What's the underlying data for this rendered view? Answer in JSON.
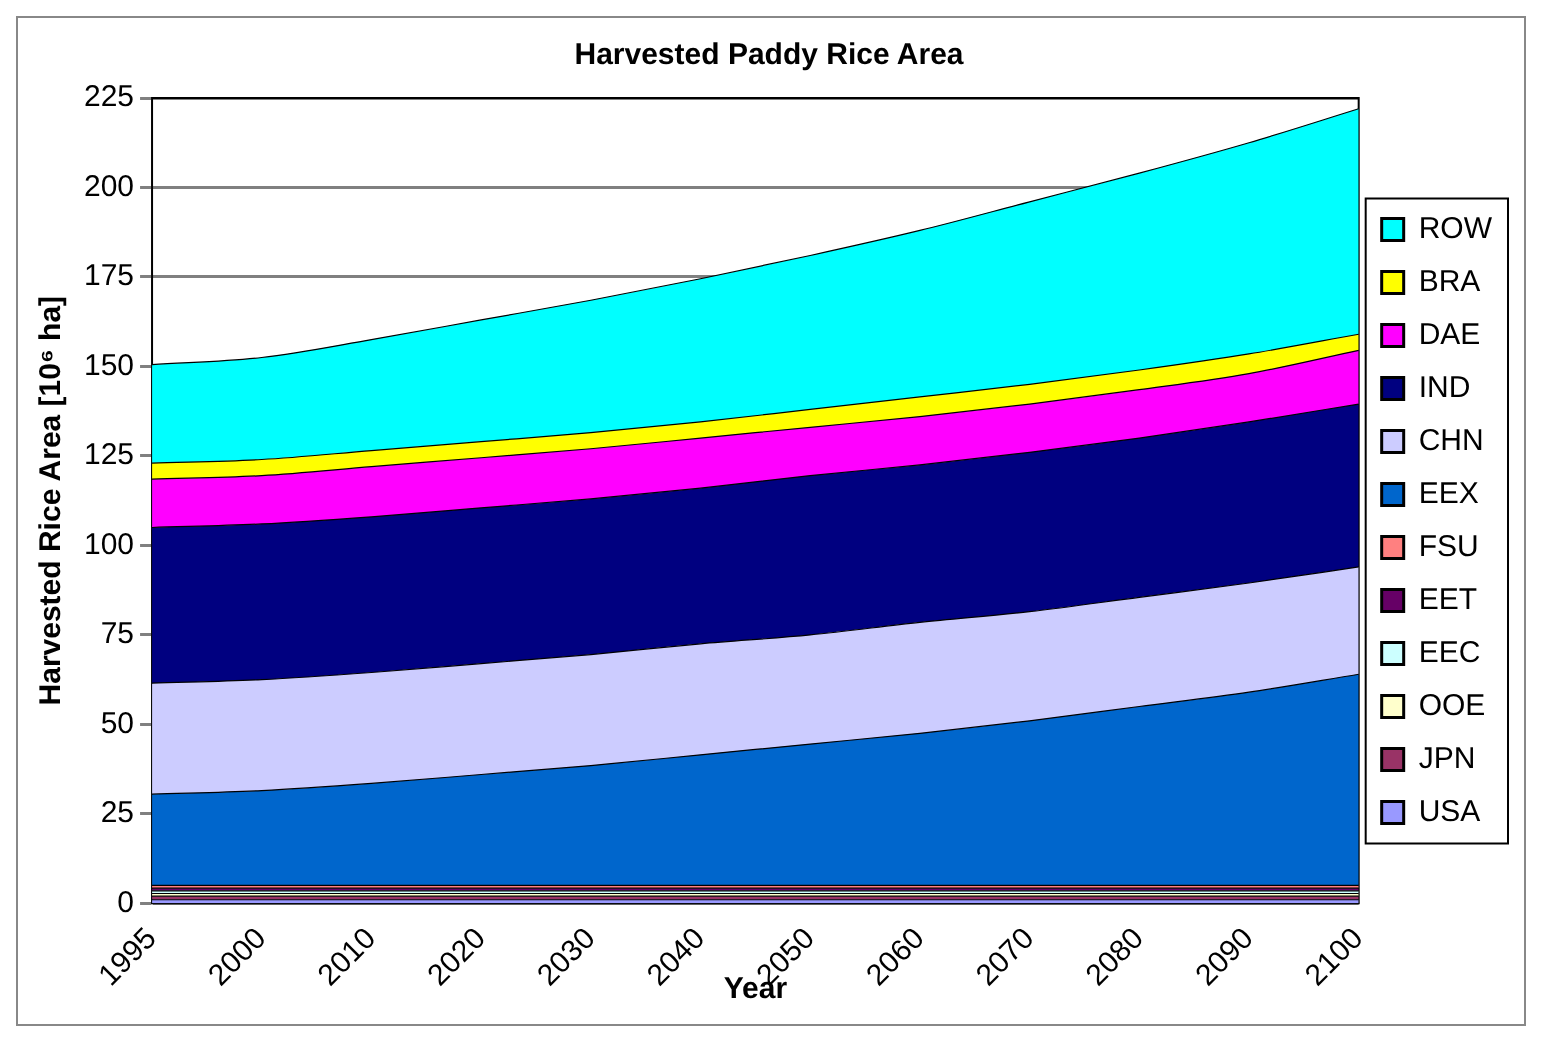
{
  "chart_data": {
    "type": "area",
    "title": "Harvested Paddy Rice Area",
    "xlabel": "Year",
    "ylabel": "Harvested Rice Area [10⁶ ha]",
    "categories": [
      "1995",
      "2000",
      "2010",
      "2020",
      "2030",
      "2040",
      "2050",
      "2060",
      "2070",
      "2080",
      "2090",
      "2100"
    ],
    "stacked": true,
    "ylim": [
      0,
      225
    ],
    "yticks": [
      0,
      25,
      50,
      75,
      100,
      125,
      150,
      175,
      200,
      225
    ],
    "grid": "y",
    "legend": "right",
    "series": [
      {
        "name": "USA",
        "color": "#9999ff",
        "values": [
          1,
          1,
          1,
          1,
          1,
          1,
          1,
          1,
          1,
          1,
          1,
          1
        ]
      },
      {
        "name": "JPN",
        "color": "#993366",
        "values": [
          1,
          1,
          1,
          1,
          1,
          1,
          1,
          1,
          1,
          1,
          1,
          1
        ]
      },
      {
        "name": "OOE",
        "color": "#ffffcc",
        "values": [
          0.75,
          0.75,
          0.75,
          0.75,
          0.75,
          0.75,
          0.75,
          0.75,
          0.75,
          0.75,
          0.75,
          0.75
        ]
      },
      {
        "name": "EEC",
        "color": "#ccffff",
        "values": [
          0.75,
          0.75,
          0.75,
          0.75,
          0.75,
          0.75,
          0.75,
          0.75,
          0.75,
          0.75,
          0.75,
          0.75
        ]
      },
      {
        "name": "EET",
        "color": "#660066",
        "values": [
          0.75,
          0.75,
          0.75,
          0.75,
          0.75,
          0.75,
          0.75,
          0.75,
          0.75,
          0.75,
          0.75,
          0.75
        ]
      },
      {
        "name": "FSU",
        "color": "#ff8080",
        "values": [
          0.75,
          0.75,
          0.75,
          0.75,
          0.75,
          0.75,
          0.75,
          0.75,
          0.75,
          0.75,
          0.75,
          0.75
        ]
      },
      {
        "name": "EEX",
        "color": "#0066cc",
        "values": [
          25.5,
          26.5,
          28.5,
          31,
          33.5,
          36.5,
          39.5,
          42.5,
          46,
          50,
          54,
          59
        ]
      },
      {
        "name": "CHN",
        "color": "#ccccff",
        "values": [
          31,
          31,
          31,
          31,
          31,
          31,
          30.5,
          31,
          30.5,
          30.5,
          30.5,
          30
        ]
      },
      {
        "name": "IND",
        "color": "#000080",
        "values": [
          43.5,
          43.5,
          43.5,
          43.5,
          43.5,
          43.5,
          44.5,
          44,
          44.5,
          44.5,
          45,
          45.5
        ]
      },
      {
        "name": "DAE",
        "color": "#ff00ff",
        "values": [
          13.5,
          13.5,
          14,
          14,
          14,
          14,
          13.5,
          13.5,
          13.5,
          13.5,
          13.5,
          15
        ]
      },
      {
        "name": "BRA",
        "color": "#ffff00",
        "values": [
          4.5,
          4.5,
          4.5,
          4.5,
          4.5,
          4.5,
          5,
          5.5,
          5.5,
          5.5,
          5.5,
          4.5
        ]
      },
      {
        "name": "ROW",
        "color": "#00ffff",
        "values": [
          27.5,
          28.5,
          31,
          34,
          37,
          40,
          43,
          46.5,
          51,
          55,
          59,
          63
        ]
      }
    ]
  }
}
